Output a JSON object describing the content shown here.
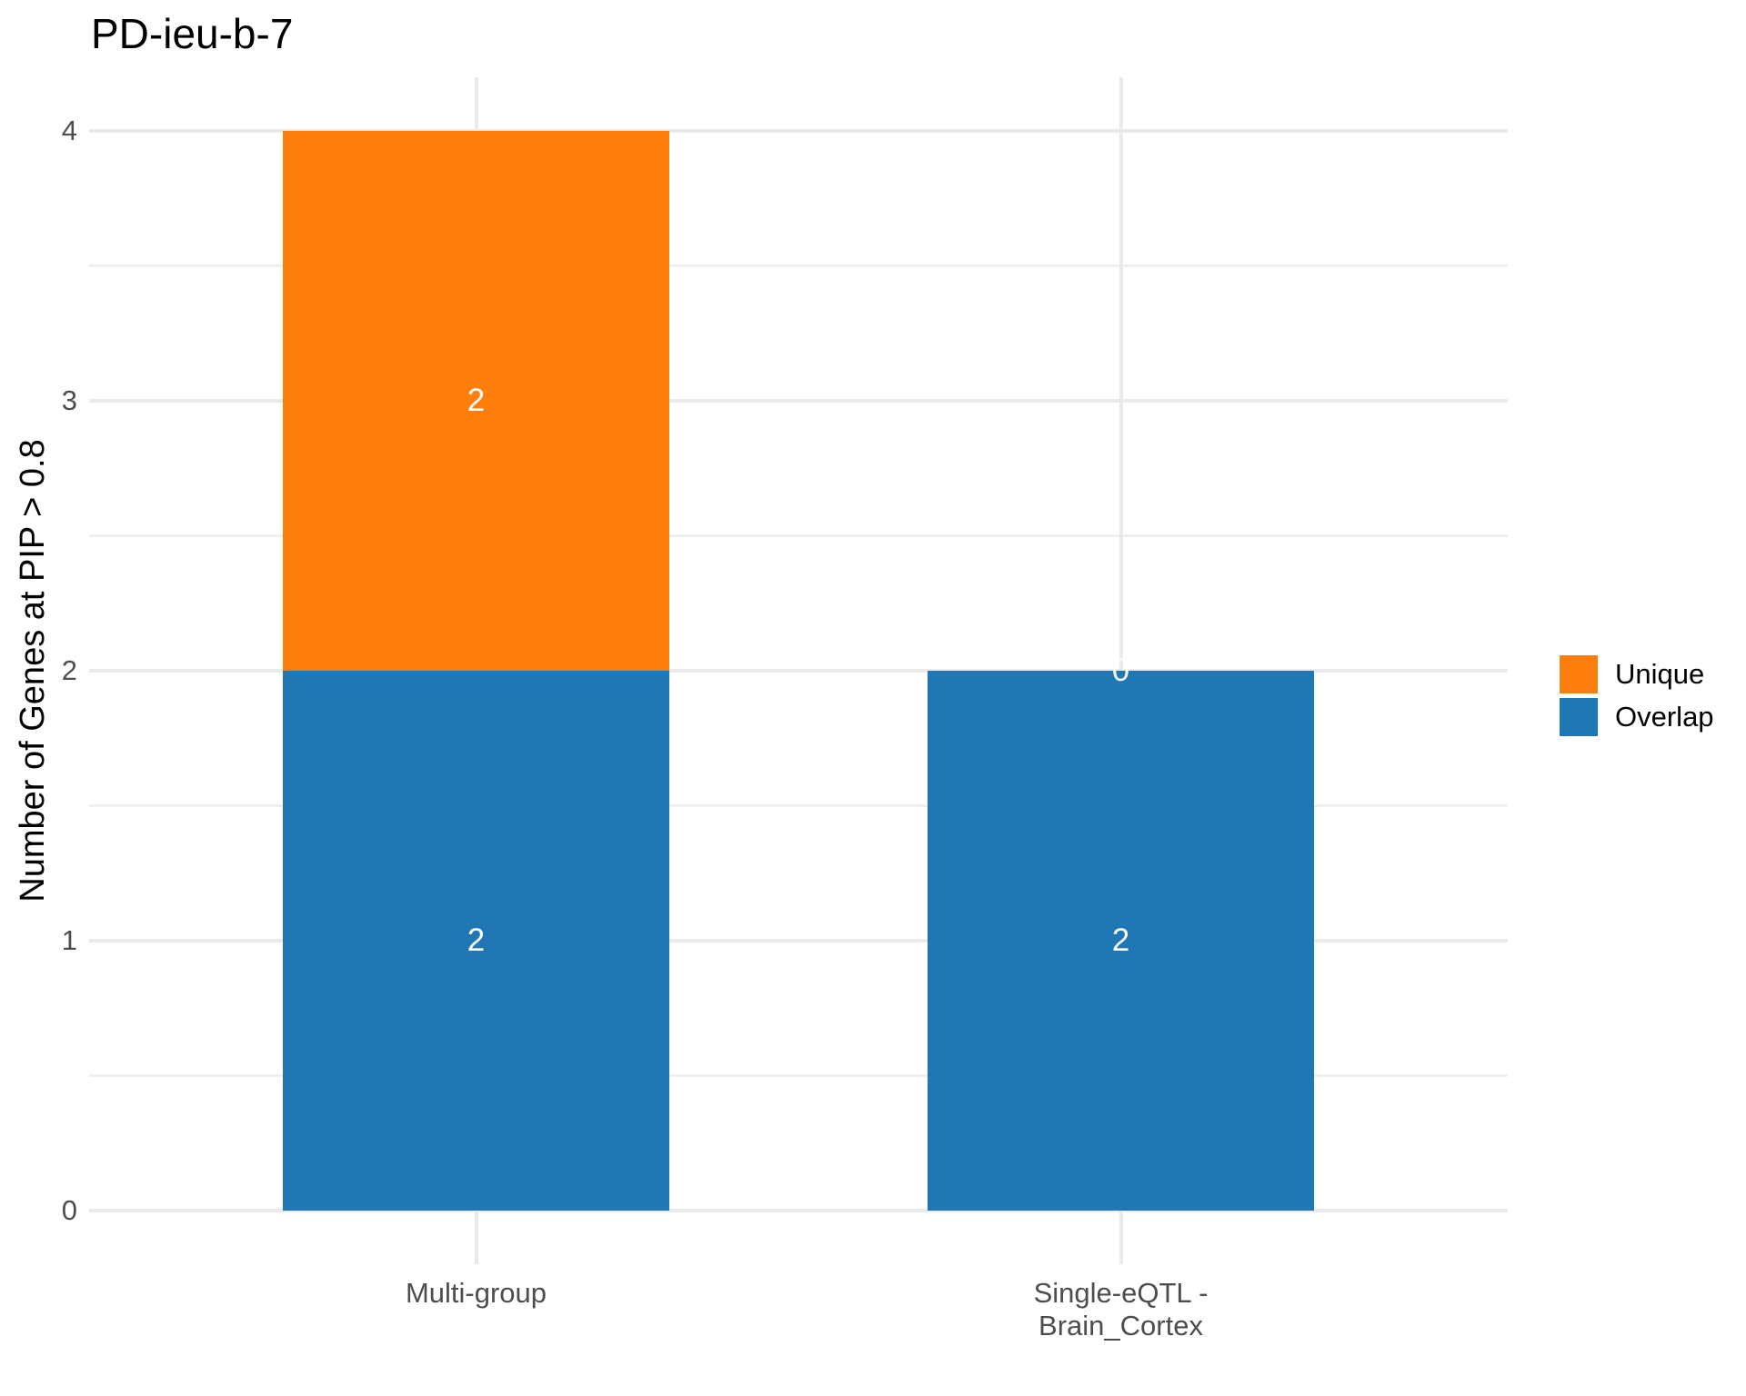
{
  "page": {
    "background": "#FFFFFF"
  },
  "chart_data": {
    "type": "bar",
    "stacked": true,
    "title": "PD-ieu-b-7",
    "xlabel": "",
    "ylabel": "Number of Genes at PIP > 0.8",
    "categories": [
      "Multi-group",
      "Single-eQTL -\nBrain_Cortex"
    ],
    "series": [
      {
        "name": "Overlap",
        "color": "#1F77B4",
        "values": [
          2,
          2
        ]
      },
      {
        "name": "Unique",
        "color": "#FF7F0E",
        "values": [
          2,
          0
        ]
      }
    ],
    "stack_totals": [
      4,
      2
    ],
    "segment_labels": [
      [
        "2",
        "2"
      ],
      [
        "2",
        "0"
      ]
    ],
    "ylim": [
      0,
      4
    ],
    "yticks": [
      "0",
      "1",
      "2",
      "3",
      "4"
    ],
    "grid": "on",
    "grid_color": "#EAEAEA",
    "axis_text_color": "#4D4D4D",
    "bar_label_color": "#FFFFFF",
    "legend": {
      "position": "right",
      "entries": [
        {
          "label": "Unique",
          "color": "#FF7F0E"
        },
        {
          "label": "Overlap",
          "color": "#1F77B4"
        }
      ]
    }
  }
}
